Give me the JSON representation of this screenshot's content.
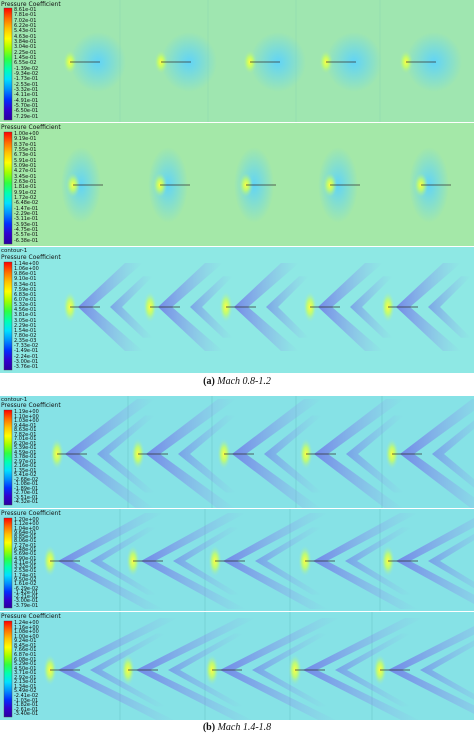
{
  "panels": [
    {
      "id": "a1",
      "title": "Pressure Coefficient",
      "subtitle": "",
      "background": "#9fe6b0",
      "pattern": "subsonic",
      "ticks": [
        "8.61e-01",
        "7.81e-01",
        "7.02e-01",
        "6.22e-01",
        "5.43e-01",
        "4.63e-01",
        "3.84e-01",
        "3.04e-01",
        "2.25e-01",
        "1.45e-01",
        "6.55e-02",
        "-1.39e-02",
        "-9.34e-02",
        "-1.73e-01",
        "-2.53e-01",
        "-3.32e-01",
        "-4.11e-01",
        "-4.91e-01",
        "-5.70e-01",
        "-6.50e-01",
        "-7.29e-01"
      ]
    },
    {
      "id": "a2",
      "title": "Pressure Coefficient",
      "subtitle": "",
      "background": "#a4e8a8",
      "pattern": "transonic",
      "ticks": [
        "1.00e+00",
        "9.19e-01",
        "8.37e-01",
        "7.55e-01",
        "6.73e-01",
        "5.91e-01",
        "5.09e-01",
        "4.27e-01",
        "3.45e-01",
        "2.63e-01",
        "1.81e-01",
        "9.91e-02",
        "1.72e-02",
        "-6.48e-02",
        "-1.47e-01",
        "-2.29e-01",
        "-3.11e-01",
        "-3.93e-01",
        "-4.75e-01",
        "-5.57e-01",
        "-6.38e-01"
      ]
    },
    {
      "id": "a3",
      "title": "Pressure Coefficient",
      "subtitle": "contour-1",
      "background": "#8ee8e4",
      "pattern": "shock12",
      "ticks": [
        "1.14e+00",
        "1.06e+00",
        "9.86e-01",
        "9.10e-01",
        "8.34e-01",
        "7.59e-01",
        "6.83e-01",
        "6.07e-01",
        "5.32e-01",
        "4.56e-01",
        "3.81e-01",
        "3.05e-01",
        "2.29e-01",
        "1.54e-01",
        "7.80e-02",
        "2.35e-03",
        "-7.33e-02",
        "-1.49e-01",
        "-2.24e-01",
        "-3.00e-01",
        "-3.76e-01"
      ]
    },
    {
      "id": "b1",
      "title": "Pressure Coefficient",
      "subtitle": "contour-1",
      "background": "#86e2e6",
      "pattern": "shock14",
      "ticks": [
        "1.19e+00",
        "1.10e+00",
        "1.03e+00",
        "9.44e-01",
        "8.63e-01",
        "7.82e-01",
        "7.01e-01",
        "6.20e-01",
        "5.39e-01",
        "4.59e-01",
        "3.78e-01",
        "2.97e-01",
        "2.16e-01",
        "1.35e-01",
        "5.41e-02",
        "-2.68e-02",
        "-1.08e-01",
        "-1.89e-01",
        "-2.70e-01",
        "-3.51e-01",
        "-4.32e-01"
      ]
    },
    {
      "id": "b2",
      "title": "Pressure Coefficient",
      "subtitle": "",
      "background": "#86e2e6",
      "pattern": "shock16",
      "ticks": [
        "1.20e+00",
        "1.12e+00",
        "1.04e+00",
        "9.64e-01",
        "8.85e-01",
        "8.06e-01",
        "7.27e-01",
        "6.48e-01",
        "5.69e-01",
        "4.90e-01",
        "4.11e-01",
        "3.32e-01",
        "2.53e-01",
        "1.74e-01",
        "9.50e-02",
        "1.61e-02",
        "-6.29e-02",
        "-1.42e-01",
        "-2.21e-01",
        "-3.00e-01",
        "-3.79e-01"
      ]
    },
    {
      "id": "b3",
      "title": "Pressure Coefficient",
      "subtitle": "",
      "background": "#86e2e6",
      "pattern": "shock18",
      "ticks": [
        "1.24e+00",
        "1.16e+00",
        "1.08e+00",
        "1.00e+00",
        "9.24e-01",
        "8.45e-01",
        "7.66e-01",
        "6.87e-01",
        "6.08e-01",
        "5.29e-01",
        "4.50e-01",
        "3.71e-01",
        "2.92e-01",
        "2.13e-01",
        "1.34e-01",
        "5.49e-02",
        "-2.41e-02",
        "-1.03e-01",
        "-1.82e-01",
        "-2.61e-01",
        "-3.40e-01"
      ]
    }
  ],
  "captions": {
    "a": {
      "label": "(a)",
      "text": "Mach 0.8-1.2"
    },
    "b": {
      "label": "(b)",
      "text": "Mach 1.4-1.8"
    }
  },
  "colormap": [
    "#ff0000",
    "#ff6a00",
    "#ffc000",
    "#ffff00",
    "#9fff00",
    "#2fff40",
    "#00ffb0",
    "#00e0ff",
    "#0090ff",
    "#0030ff",
    "#3000d0",
    "#2a00a0"
  ]
}
